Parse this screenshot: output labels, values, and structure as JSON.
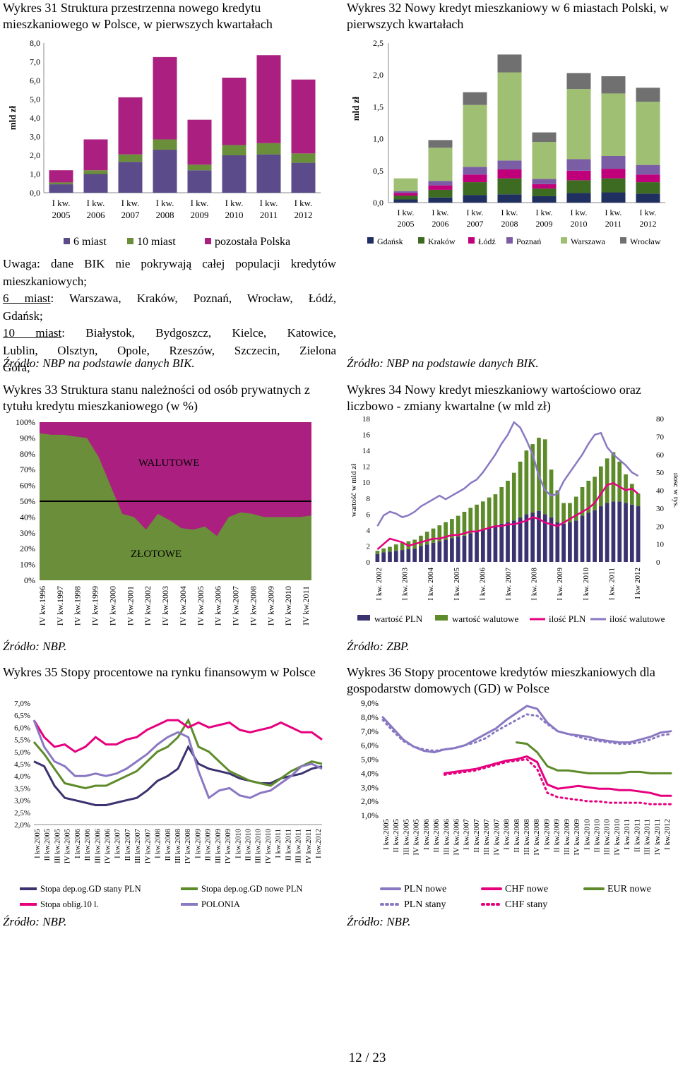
{
  "w31": {
    "caption": "Wykres 31 Struktura przestrzenna nowego kredytu mieszkaniowego w Polsce, w pierwszych kwartałach",
    "chart_data": {
      "type": "bar",
      "stacked": true,
      "ylabel": "mld zł",
      "ylim": [
        0,
        8
      ],
      "yticks": [
        "0,0",
        "1,0",
        "2,0",
        "3,0",
        "4,0",
        "5,0",
        "6,0",
        "7,0",
        "8,0"
      ],
      "categories": [
        "I kw. 2005",
        "I kw. 2006",
        "I kw. 2007",
        "I kw. 2008",
        "I kw. 2009",
        "I kw. 2010",
        "I kw. 2011",
        "I kw. 2012"
      ],
      "series": [
        {
          "name": "6 miast",
          "color": "#5b4b8a",
          "values": [
            0.45,
            1.0,
            1.65,
            2.3,
            1.2,
            2.0,
            2.05,
            1.6
          ]
        },
        {
          "name": "10 miast",
          "color": "#6b8e3a",
          "values": [
            0.1,
            0.2,
            0.4,
            0.55,
            0.3,
            0.55,
            0.6,
            0.5
          ]
        },
        {
          "name": "pozostała Polska",
          "color": "#aa1f7f",
          "values": [
            0.65,
            1.65,
            3.05,
            4.4,
            2.4,
            3.6,
            4.7,
            3.95
          ]
        }
      ],
      "legend": "bottom"
    }
  },
  "w32": {
    "caption": "Wykres 32 Nowy kredyt mieszkaniowy w 6 miastach Polski, w pierwszych kwartałach",
    "chart_data": {
      "type": "bar",
      "stacked": true,
      "ylabel": "mld zł",
      "ylim": [
        0,
        2.5
      ],
      "yticks": [
        "0,0",
        "0,5",
        "1,0",
        "1,5",
        "2,0",
        "2,5"
      ],
      "categories": [
        "I kw. 2005",
        "I kw. 2006",
        "I kw. 2007",
        "I kw. 2008",
        "I kw. 2009",
        "I kw. 2010",
        "I kw. 2011",
        "I kw. 2012"
      ],
      "series": [
        {
          "name": "Gdańsk",
          "color": "#1f2f5f",
          "values": [
            0.05,
            0.08,
            0.12,
            0.13,
            0.1,
            0.15,
            0.16,
            0.14
          ]
        },
        {
          "name": "Kraków",
          "color": "#3e6b22",
          "values": [
            0.06,
            0.12,
            0.2,
            0.25,
            0.12,
            0.2,
            0.22,
            0.18
          ]
        },
        {
          "name": "Łódź",
          "color": "#c0007a",
          "values": [
            0.04,
            0.07,
            0.12,
            0.14,
            0.07,
            0.15,
            0.15,
            0.12
          ]
        },
        {
          "name": "Poznań",
          "color": "#7b5da6",
          "values": [
            0.03,
            0.07,
            0.12,
            0.14,
            0.08,
            0.18,
            0.2,
            0.15
          ]
        },
        {
          "name": "Warszawa",
          "color": "#9fbf72",
          "values": [
            0.2,
            0.52,
            0.97,
            1.38,
            0.58,
            1.1,
            0.98,
            0.99
          ]
        },
        {
          "name": "Wrocław",
          "color": "#707070",
          "values": [
            0.0,
            0.12,
            0.2,
            0.28,
            0.15,
            0.25,
            0.27,
            0.22
          ]
        }
      ],
      "legend": "bottom"
    }
  },
  "note": {
    "l1": "Uwaga: dane BIK nie pokrywają całej populacji kredytów mieszkaniowych;",
    "l2a": "6 miast",
    "l2b": ": Warszawa, Kraków, Poznań, Wrocław, Łódź,",
    "l3": "Gdańsk;",
    "l4a": "10 miast",
    "l4b": ": Białystok, Bydgoszcz, Kielce, Katowice,",
    "l5": "Lublin, Olsztyn, Opole, Rzeszów, Szczecin, Zielona",
    "l6": "Góra;"
  },
  "sources": {
    "s31": "Źródło: NBP na podstawie danych BIK.",
    "s32": "Źródło: NBP na podstawie danych BIK.",
    "s33": "Źródło: NBP.",
    "s34": "Źródło: ZBP.",
    "s35": "Źródło: NBP.",
    "s36": "Źródło: NBP."
  },
  "w33": {
    "caption": "Wykres 33 Struktura stanu należności od osób prywatnych z tytułu kredytu mieszkaniowego (w %)",
    "chart_data": {
      "type": "area",
      "stacked": true,
      "ylim": [
        0,
        100
      ],
      "yticks": [
        "0%",
        "10%",
        "20%",
        "30%",
        "40%",
        "50%",
        "60%",
        "70%",
        "80%",
        "90%",
        "100%"
      ],
      "xticks": [
        "IV kw.1996",
        "IV kw.1997",
        "IV kw.1998",
        "IV kw.1999",
        "IV kw.2000",
        "IV kw.2001",
        "IV kw.2002",
        "IV kw.2003",
        "IV kw.2004",
        "IV kw.2005",
        "IV kw.2006",
        "IV kw.2007",
        "IV kw.2008",
        "IV kw.2009",
        "IV kw.2010",
        "IV kw.2011"
      ],
      "annotations": [
        "WALUTOWE",
        "ZŁOTOWE"
      ],
      "reference_line": 50,
      "series": [
        {
          "name": "ZŁOTOWE",
          "color": "#6b8e3a",
          "values": [
            93,
            92,
            92,
            91,
            90,
            78,
            60,
            42,
            40,
            32,
            42,
            38,
            33,
            32,
            34,
            28,
            40,
            43,
            42,
            40,
            40,
            40,
            40,
            41
          ]
        },
        {
          "name": "WALUTOWE",
          "color": "#aa1f7f"
        }
      ]
    }
  },
  "w34": {
    "caption": "Wykres 34 Nowy kredyt mieszkaniowy wartościowo oraz liczbowo - zmiany kwartalne (w mld zł)",
    "chart_data": {
      "type": "bar",
      "stacked": true,
      "ylabel": "wartość w mld zł",
      "y2label": "ilość w tys.",
      "ylim": [
        0,
        18
      ],
      "y2lim": [
        0,
        80
      ],
      "yticks": [
        "0",
        "2",
        "4",
        "6",
        "8",
        "10",
        "12",
        "14",
        "16",
        "18"
      ],
      "y2ticks": [
        "0",
        "10",
        "20",
        "30",
        "40",
        "50",
        "60",
        "70",
        "80"
      ],
      "xticks": [
        "I kw. 2002",
        "I kw. 2003",
        "I kw. 2004",
        "I kw. 2005",
        "I kw. 2006",
        "I kw. 2007",
        "I kw. 2008",
        "I kw. 2009",
        "I kw. 2010",
        "I kw. 2011",
        "I kw 2012"
      ],
      "series": [
        {
          "name": "wartość PLN",
          "color": "#3b3370",
          "values": [
            1.0,
            1.2,
            1.3,
            1.4,
            1.5,
            1.6,
            1.7,
            2.0,
            2.2,
            2.4,
            2.6,
            2.8,
            3.0,
            3.2,
            3.3,
            3.6,
            3.8,
            4.0,
            4.3,
            4.5,
            4.8,
            5.0,
            5.2,
            5.6,
            6.0,
            6.2,
            6.4,
            6.0,
            5.6,
            5.0,
            4.8,
            5.0,
            5.2,
            5.8,
            6.2,
            6.5,
            7.0,
            7.4,
            7.6,
            7.6,
            7.4,
            7.2,
            7.0
          ]
        },
        {
          "name": "wartość walutowe",
          "color": "#5e8b2a",
          "values": [
            0.4,
            0.5,
            0.6,
            0.8,
            0.9,
            1.0,
            1.1,
            1.3,
            1.6,
            1.8,
            2.0,
            2.2,
            2.4,
            2.6,
            3.0,
            3.2,
            3.4,
            3.6,
            3.8,
            4.0,
            4.6,
            5.2,
            6.0,
            7.0,
            8.0,
            8.6,
            9.2,
            9.4,
            6.0,
            4.0,
            2.6,
            2.4,
            3.0,
            3.6,
            4.0,
            4.2,
            5.0,
            5.6,
            6.2,
            5.0,
            3.6,
            2.6,
            1.6
          ]
        },
        {
          "name": "ilość PLN",
          "color": "#e6007e",
          "values": [
            7,
            10,
            13,
            12,
            11,
            9,
            10,
            11,
            12,
            13,
            13,
            14,
            15,
            15,
            16,
            17,
            17,
            18,
            19,
            20,
            20,
            21,
            21,
            22,
            23,
            25,
            24,
            22,
            21,
            20,
            22,
            24,
            26,
            28,
            30,
            33,
            38,
            43,
            44,
            42,
            40,
            41,
            38
          ]
        },
        {
          "name": "ilość walutowe",
          "color": "#8a78c2",
          "values": [
            20,
            26,
            28,
            27,
            25,
            26,
            28,
            31,
            33,
            35,
            37,
            35,
            37,
            39,
            41,
            44,
            46,
            50,
            55,
            60,
            66,
            71,
            78,
            75,
            68,
            60,
            48,
            40,
            37,
            38,
            45,
            50,
            55,
            60,
            66,
            71,
            72,
            64,
            60,
            57,
            54,
            50,
            48
          ]
        }
      ],
      "legend": "bottom"
    }
  },
  "w35": {
    "caption": "Wykres 35 Stopy procentowe na rynku finansowym w Polsce",
    "chart_data": {
      "type": "line",
      "ylim": [
        2.0,
        7.0
      ],
      "yticks": [
        "2,0%",
        "2,5%",
        "3,0%",
        "3,5%",
        "4,0%",
        "4,5%",
        "5,0%",
        "5,5%",
        "6,0%",
        "6,5%",
        "7,0%"
      ],
      "xticks": [
        "I kw.2005",
        "II kw.2005",
        "III kw.2005",
        "IV kw.2005",
        "I kw.2006",
        "II kw.2006",
        "III kw.2006",
        "IV kw.2006",
        "I kw.2007",
        "II kw.2007",
        "III kw.2007",
        "IV kw.2007",
        "I kw.2008",
        "II kw.2008",
        "III kw.2008",
        "IV kw.2008",
        "I kw.2009",
        "II kw.2009",
        "III kw.2009",
        "IV kw.2009",
        "I kw.2010",
        "II kw.2010",
        "III kw.2010",
        "IV kw.2010",
        "I kw.2011",
        "II kw.2011",
        "III kw.2011",
        "IV kw.2011",
        "I kw.2012"
      ],
      "series": [
        {
          "name": "Stopa dep.og.GD stany PLN",
          "color": "#3b3370",
          "values": [
            4.6,
            4.4,
            3.6,
            3.1,
            3.0,
            2.9,
            2.8,
            2.8,
            2.9,
            3.0,
            3.1,
            3.4,
            3.8,
            4.0,
            4.3,
            5.2,
            4.5,
            4.3,
            4.2,
            4.1,
            3.9,
            3.8,
            3.7,
            3.7,
            3.9,
            4.0,
            4.1,
            4.3,
            4.4
          ]
        },
        {
          "name": "Stopa dep.og.GD nowe PLN",
          "color": "#5e8b2a",
          "values": [
            5.4,
            4.9,
            4.3,
            3.7,
            3.6,
            3.5,
            3.6,
            3.6,
            3.8,
            4.0,
            4.2,
            4.6,
            5.0,
            5.2,
            5.6,
            6.3,
            5.2,
            5.0,
            4.6,
            4.2,
            4.0,
            3.8,
            3.7,
            3.6,
            3.9,
            4.2,
            4.4,
            4.6,
            4.5
          ]
        },
        {
          "name": "Stopa oblig.10 l.",
          "color": "#e6007e",
          "values": [
            6.3,
            5.6,
            5.2,
            5.3,
            5.0,
            5.2,
            5.6,
            5.3,
            5.3,
            5.5,
            5.6,
            5.9,
            6.1,
            6.3,
            6.3,
            6.0,
            6.2,
            6.0,
            6.1,
            6.2,
            5.9,
            5.8,
            5.9,
            6.0,
            6.2,
            6.0,
            5.8,
            5.8,
            5.5
          ]
        },
        {
          "name": "POLONIA",
          "color": "#8a78c2",
          "values": [
            6.3,
            5.2,
            4.6,
            4.4,
            4.0,
            4.0,
            4.1,
            4.0,
            4.1,
            4.3,
            4.6,
            4.9,
            5.3,
            5.6,
            5.8,
            5.6,
            4.2,
            3.1,
            3.4,
            3.5,
            3.2,
            3.1,
            3.3,
            3.4,
            3.7,
            4.0,
            4.4,
            4.5,
            4.3
          ]
        }
      ],
      "legend": "bottom"
    }
  },
  "w36": {
    "caption": "Wykres 36 Stopy procentowe kredytów mieszkaniowych dla gospodarstw domowych (GD) w Polsce",
    "chart_data": {
      "type": "line",
      "ylim": [
        1.0,
        9.0
      ],
      "yticks": [
        "1,0%",
        "2,0%",
        "3,0%",
        "4,0%",
        "5,0%",
        "6,0%",
        "7,0%",
        "8,0%",
        "9,0%"
      ],
      "xticks": [
        "I kw.2005",
        "II kw.2005",
        "III kw.2005",
        "IV kw.2005",
        "I kw.2006",
        "II kw.2006",
        "III kw.2006",
        "IV kw.2006",
        "I kw.2007",
        "II kw.2007",
        "III kw.2007",
        "IV kw.2007",
        "I kw.2008",
        "II kw.2008",
        "III kw.2008",
        "IV kw.2008",
        "I kw.2009",
        "II kw.2009",
        "III kw.2009",
        "IV kw.2009",
        "I kw.2010",
        "II kw.2010",
        "III kw.2010",
        "IV kw.2010",
        "I kw.2011",
        "II kw.2011",
        "III kw.2011",
        "IV kw.2011",
        "I kw.2012"
      ],
      "series": [
        {
          "name": "PLN nowe",
          "color": "#8a78c2",
          "dashed": false,
          "values": [
            8.0,
            7.2,
            6.4,
            5.9,
            5.6,
            5.5,
            5.7,
            5.8,
            6.0,
            6.4,
            6.8,
            7.2,
            7.8,
            8.3,
            8.8,
            8.6,
            7.6,
            7.0,
            6.8,
            6.7,
            6.6,
            6.4,
            6.3,
            6.2,
            6.2,
            6.4,
            6.6,
            6.9,
            7.0
          ]
        },
        {
          "name": "PLN stany",
          "color": "#8a78c2",
          "dashed": true,
          "values": [
            7.8,
            7.0,
            6.3,
            5.9,
            5.7,
            5.6,
            5.7,
            5.8,
            6.0,
            6.2,
            6.5,
            7.0,
            7.4,
            7.8,
            8.2,
            8.1,
            7.5,
            7.0,
            6.8,
            6.6,
            6.4,
            6.3,
            6.2,
            6.1,
            6.1,
            6.2,
            6.4,
            6.7,
            6.8
          ]
        },
        {
          "name": "CHF nowe",
          "color": "#e6007e",
          "dashed": false,
          "values": [
            null,
            null,
            null,
            null,
            null,
            null,
            4.0,
            4.1,
            4.2,
            4.3,
            4.5,
            4.7,
            4.9,
            5.0,
            5.2,
            4.8,
            3.2,
            2.9,
            3.0,
            3.1,
            3.0,
            2.9,
            2.9,
            2.8,
            2.8,
            2.7,
            2.6,
            2.4,
            2.4
          ]
        },
        {
          "name": "CHF stany",
          "color": "#e6007e",
          "dashed": true,
          "values": [
            null,
            null,
            null,
            null,
            null,
            null,
            3.9,
            4.0,
            4.1,
            4.2,
            4.4,
            4.6,
            4.8,
            4.9,
            5.0,
            4.3,
            2.6,
            2.3,
            2.2,
            2.1,
            2.0,
            2.0,
            1.9,
            1.9,
            1.9,
            1.9,
            1.8,
            1.8,
            1.8
          ]
        },
        {
          "name": "EUR nowe",
          "color": "#5e8b2a",
          "dashed": false,
          "values": [
            null,
            null,
            null,
            null,
            null,
            null,
            null,
            null,
            null,
            null,
            null,
            null,
            null,
            6.2,
            6.1,
            5.5,
            4.5,
            4.2,
            4.2,
            4.1,
            4.0,
            4.0,
            4.0,
            4.0,
            4.1,
            4.1,
            4.0,
            4.0,
            4.0
          ]
        }
      ],
      "legend": "bottom"
    }
  },
  "page_number": "12 / 23"
}
